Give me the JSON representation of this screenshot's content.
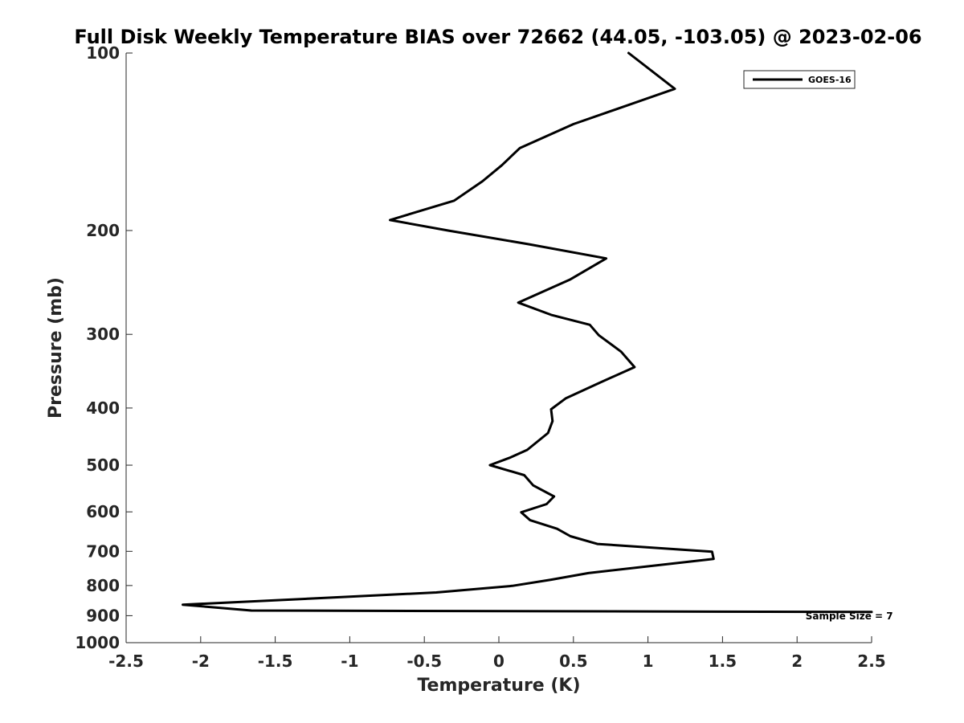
{
  "chart_data": {
    "type": "line",
    "title": "Full Disk Weekly Temperature BIAS over 72662 (44.05, -103.05) @ 2023-02-06",
    "xlabel": "Temperature (K)",
    "ylabel": "Pressure (mb)",
    "xlim": [
      -2.5,
      2.5
    ],
    "ylim": [
      1000,
      100
    ],
    "y_scale": "log",
    "x_ticks": [
      -2.5,
      -2,
      -1.5,
      -1,
      -0.5,
      0,
      0.5,
      1,
      1.5,
      2,
      2.5
    ],
    "x_tick_labels": [
      "-2.5",
      "-2",
      "-1.5",
      "-1",
      "-0.5",
      "0",
      "0.5",
      "1",
      "1.5",
      "2",
      "2.5"
    ],
    "y_ticks": [
      100,
      200,
      300,
      400,
      500,
      600,
      700,
      800,
      900,
      1000
    ],
    "y_tick_labels": [
      "100",
      "200",
      "300",
      "400",
      "500",
      "600",
      "700",
      "800",
      "900",
      "1000"
    ],
    "grid": false,
    "legend_position": "top-right",
    "series": [
      {
        "name": "GOES-16",
        "color": "#000000",
        "points": [
          {
            "x": 0.87,
            "p": 100
          },
          {
            "x": 1.18,
            "p": 115
          },
          {
            "x": 0.5,
            "p": 132
          },
          {
            "x": 0.14,
            "p": 145
          },
          {
            "x": 0.02,
            "p": 155
          },
          {
            "x": -0.11,
            "p": 165
          },
          {
            "x": -0.3,
            "p": 178
          },
          {
            "x": -0.73,
            "p": 192
          },
          {
            "x": -0.34,
            "p": 200
          },
          {
            "x": 0.2,
            "p": 211
          },
          {
            "x": 0.72,
            "p": 223
          },
          {
            "x": 0.48,
            "p": 242
          },
          {
            "x": 0.13,
            "p": 265
          },
          {
            "x": 0.35,
            "p": 278
          },
          {
            "x": 0.61,
            "p": 289
          },
          {
            "x": 0.67,
            "p": 301
          },
          {
            "x": 0.82,
            "p": 321
          },
          {
            "x": 0.91,
            "p": 341
          },
          {
            "x": 0.68,
            "p": 362
          },
          {
            "x": 0.45,
            "p": 385
          },
          {
            "x": 0.35,
            "p": 402
          },
          {
            "x": 0.36,
            "p": 421
          },
          {
            "x": 0.33,
            "p": 441
          },
          {
            "x": 0.19,
            "p": 471
          },
          {
            "x": 0.08,
            "p": 485
          },
          {
            "x": -0.06,
            "p": 500
          },
          {
            "x": 0.17,
            "p": 520
          },
          {
            "x": 0.23,
            "p": 541
          },
          {
            "x": 0.37,
            "p": 565
          },
          {
            "x": 0.32,
            "p": 582
          },
          {
            "x": 0.15,
            "p": 601
          },
          {
            "x": 0.21,
            "p": 620
          },
          {
            "x": 0.39,
            "p": 641
          },
          {
            "x": 0.48,
            "p": 660
          },
          {
            "x": 0.66,
            "p": 680
          },
          {
            "x": 1.43,
            "p": 701
          },
          {
            "x": 1.44,
            "p": 721
          },
          {
            "x": 0.6,
            "p": 762
          },
          {
            "x": 0.35,
            "p": 782
          },
          {
            "x": 0.09,
            "p": 801
          },
          {
            "x": -0.42,
            "p": 822
          },
          {
            "x": -1.18,
            "p": 840
          },
          {
            "x": -2.12,
            "p": 862
          },
          {
            "x": -1.66,
            "p": 882
          },
          {
            "x": 2.5,
            "p": 887
          }
        ]
      }
    ],
    "annotations": [
      {
        "text": "Sample Size = 7",
        "x": 2.35,
        "p": 902
      }
    ]
  }
}
